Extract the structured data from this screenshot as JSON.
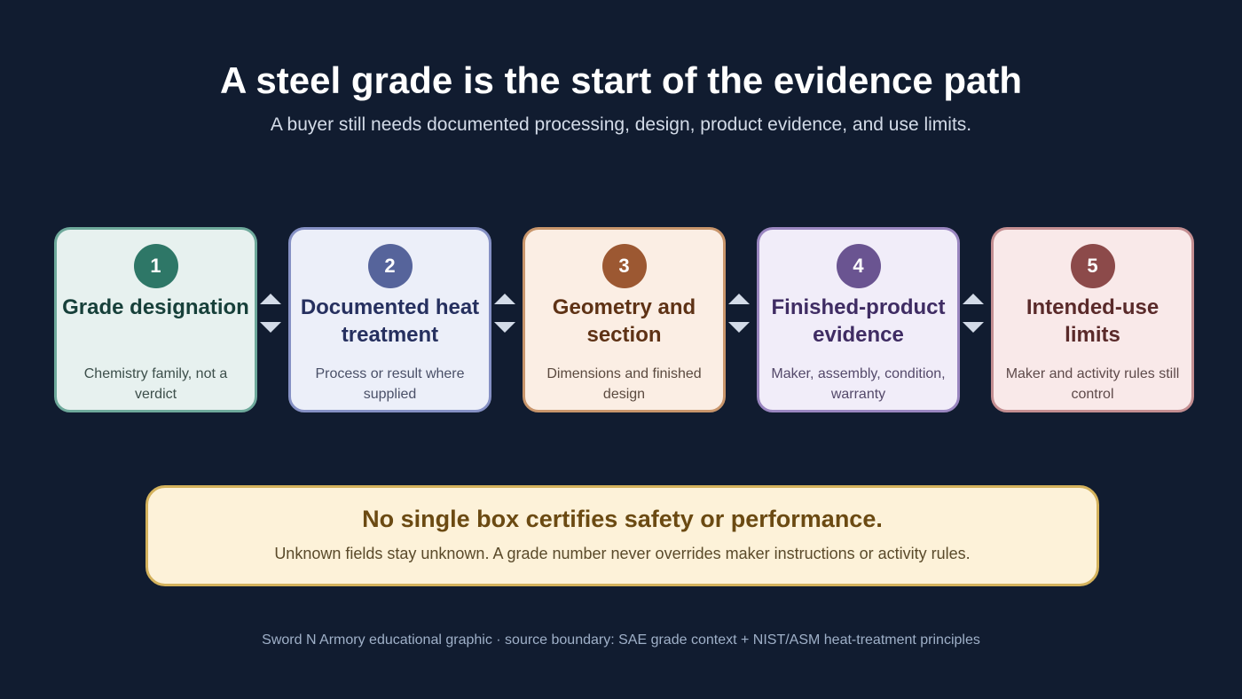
{
  "title": "A steel grade is the start of the evidence path",
  "subtitle": "A buyer still needs documented processing, design, product evidence, and use limits.",
  "steps": [
    {
      "number": "1",
      "title": "Grade designation",
      "description": "Chemistry family, not a verdict",
      "colors": {
        "bg": "#e7f1ef",
        "border": "#6ea99b",
        "badge": "#2e7767",
        "title": "#17403a",
        "text": "#3d4f4b"
      }
    },
    {
      "number": "2",
      "title": "Documented heat treatment",
      "description": "Process or result where supplied",
      "colors": {
        "bg": "#eceff9",
        "border": "#8590c4",
        "badge": "#56649b",
        "title": "#26305f",
        "text": "#4a5068"
      }
    },
    {
      "number": "3",
      "title": "Geometry and section",
      "description": "Dimensions and finished design",
      "colors": {
        "bg": "#fbeee4",
        "border": "#c8956b",
        "badge": "#9c5832",
        "title": "#5e3215",
        "text": "#5b4a3f"
      }
    },
    {
      "number": "4",
      "title": "Finished-product evidence",
      "description": "Maker, assembly, condition, warranty",
      "colors": {
        "bg": "#f1edf9",
        "border": "#9a86c0",
        "badge": "#6a5491",
        "title": "#3f2c63",
        "text": "#54496a"
      }
    },
    {
      "number": "5",
      "title": "Intended-use limits",
      "description": "Maker and activity rules still control",
      "colors": {
        "bg": "#f9e9e9",
        "border": "#c48e91",
        "badge": "#8c4a4a",
        "title": "#5a2a2a",
        "text": "#5e4a4a"
      }
    }
  ],
  "connector_color": "#d3dbe8",
  "note": {
    "title": "No single box certifies safety or performance.",
    "text": "Unknown fields stay unknown. A grade number never overrides maker instructions or activity rules."
  },
  "footer": "Sword N Armory educational graphic · source boundary: SAE grade context + NIST/ASM heat-treatment principles"
}
